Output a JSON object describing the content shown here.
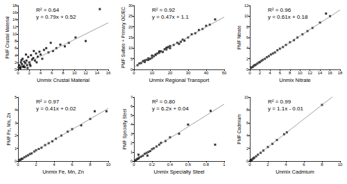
{
  "chart_data": [
    {
      "type": "scatter",
      "x_label": "Unmix Crustal Material",
      "y_label": "PMF Crustal Material",
      "annotations": [
        "R² = 0.64",
        "y = 0.79x + 0.52"
      ],
      "fit": {
        "slope": 0.79,
        "intercept": 0.52
      },
      "marker": "square",
      "color": "#000000",
      "grid": false,
      "x": [
        0.2,
        0.3,
        0.5,
        0.5,
        0.7,
        0.8,
        1.0,
        1.1,
        1.2,
        1.3,
        1.5,
        1.6,
        1.8,
        2.0,
        2.1,
        2.3,
        2.5,
        2.7,
        3.0,
        3.2,
        3.5,
        3.8,
        4.0,
        4.3,
        4.6,
        5.0,
        5.4,
        5.8,
        6.2,
        6.8,
        7.5,
        8.3,
        9.0,
        10.2,
        12.0,
        14.5,
        0.4,
        0.9,
        1.4,
        2.2,
        0.6,
        1.7,
        3.3,
        0.1,
        2.8
      ],
      "values": [
        1.2,
        0.5,
        2.0,
        0.8,
        1.5,
        3.0,
        1.0,
        2.2,
        0.6,
        1.8,
        2.5,
        1.2,
        3.5,
        2.0,
        1.4,
        4.0,
        2.8,
        3.2,
        2.5,
        4.5,
        3.6,
        5.0,
        4.2,
        3.0,
        5.5,
        6.0,
        4.8,
        7.5,
        5.2,
        6.0,
        7.0,
        6.5,
        7.5,
        9.0,
        8.0,
        17.0,
        0.3,
        0.7,
        4.2,
        1.0,
        2.6,
        0.4,
        2.0,
        0.6,
        5.2
      ],
      "xlim": [
        0,
        16
      ],
      "xticks": [
        0,
        2,
        4,
        6,
        8,
        10,
        12,
        14,
        16
      ],
      "ylim": [
        0,
        18
      ],
      "yticks": [
        0,
        2,
        4,
        6,
        8,
        10,
        12,
        14,
        16,
        18
      ]
    },
    {
      "type": "scatter",
      "x_label": "Unmix Regional Transport",
      "y_label": "PMF Sulfate + Primary OC/EC",
      "annotations": [
        "R² = 0.92",
        "y = 0.47x + 1.1"
      ],
      "fit": {
        "slope": 0.47,
        "intercept": 1.1
      },
      "marker": "square",
      "color": "#000000",
      "grid": false,
      "x": [
        2,
        3,
        4,
        5,
        6,
        7,
        8,
        9,
        10,
        11,
        12,
        13,
        14,
        15,
        16,
        17,
        18,
        19,
        20,
        22,
        24,
        25,
        27,
        28,
        30,
        32,
        34,
        36,
        38,
        40,
        42,
        45,
        6,
        10,
        14,
        18,
        8,
        12,
        20,
        26
      ],
      "values": [
        2.0,
        2.8,
        3.0,
        3.9,
        4.2,
        4.5,
        5.2,
        5.0,
        6.5,
        6.2,
        6.8,
        7.5,
        7.8,
        8.5,
        8.2,
        9.5,
        9.4,
        10.5,
        10.0,
        11.5,
        12.5,
        12.0,
        14.0,
        13.5,
        15.0,
        16.5,
        17.0,
        18.5,
        19.0,
        20.5,
        21.0,
        23.5,
        3.5,
        5.5,
        8.5,
        10.2,
        4.5,
        7.0,
        11.0,
        13.0
      ],
      "xlim": [
        0,
        50
      ],
      "xticks": [
        0,
        10,
        20,
        30,
        40,
        50
      ],
      "ylim": [
        0,
        30
      ],
      "yticks": [
        0,
        5,
        10,
        15,
        20,
        25,
        30
      ]
    },
    {
      "type": "scatter",
      "x_label": "Unmix Nitrate",
      "y_label": "PMF Nitrate",
      "annotations": [
        "R² = 0.96",
        "y = 0.61x + 0.18"
      ],
      "fit": {
        "slope": 0.61,
        "intercept": 0.18
      },
      "marker": "square",
      "color": "#000000",
      "grid": false,
      "x": [
        0.2,
        0.4,
        0.6,
        0.8,
        1.0,
        1.2,
        1.5,
        1.8,
        2.0,
        2.3,
        2.6,
        3.0,
        3.4,
        3.8,
        4.2,
        4.6,
        5.0,
        5.5,
        6.0,
        6.6,
        7.2,
        8.0,
        8.8,
        9.5,
        10.5,
        11.5,
        12.5,
        14.0,
        15.2,
        16.0
      ],
      "values": [
        0.3,
        0.4,
        0.5,
        0.7,
        0.8,
        0.9,
        1.1,
        1.3,
        1.4,
        1.6,
        1.8,
        2.0,
        2.3,
        2.5,
        2.8,
        3.0,
        3.2,
        3.6,
        3.9,
        4.2,
        4.6,
        5.1,
        5.5,
        6.0,
        6.6,
        7.2,
        7.8,
        8.8,
        10.5,
        10.0
      ],
      "xlim": [
        0,
        18
      ],
      "xticks": [
        0,
        2,
        4,
        6,
        8,
        10,
        12,
        14,
        16,
        18
      ],
      "ylim": [
        0,
        12
      ],
      "yticks": [
        0,
        2,
        4,
        6,
        8,
        10,
        12
      ]
    },
    {
      "type": "scatter",
      "x_label": "Unmix Fe, Mn, Zn",
      "y_label": "PMF Fe, Mn, Zn",
      "annotations": [
        "R² = 0.97",
        "y = 0.41x + 0.02"
      ],
      "fit": {
        "slope": 0.41,
        "intercept": 0.02
      },
      "marker": "square",
      "color": "#000000",
      "grid": false,
      "x": [
        0.1,
        0.2,
        0.3,
        0.4,
        0.5,
        0.7,
        0.9,
        1.1,
        1.3,
        1.5,
        1.8,
        2.0,
        2.3,
        2.6,
        3.0,
        3.4,
        3.8,
        4.2,
        4.8,
        5.5,
        6.0,
        7.0,
        8.0,
        8.5,
        9.8
      ],
      "values": [
        0.05,
        0.1,
        0.12,
        0.18,
        0.2,
        0.3,
        0.38,
        0.45,
        0.55,
        0.6,
        0.75,
        0.85,
        0.95,
        1.05,
        1.25,
        1.4,
        1.55,
        1.75,
        2.0,
        2.3,
        2.5,
        2.8,
        3.3,
        3.9,
        3.9
      ],
      "xlim": [
        0,
        10
      ],
      "xticks": [
        0,
        2,
        4,
        6,
        8,
        10
      ],
      "ylim": [
        0,
        5
      ],
      "yticks": [
        0,
        1,
        2,
        3,
        4,
        5
      ]
    },
    {
      "type": "scatter",
      "x_label": "Unmix Specialty Steel",
      "y_label": "PMF Specialty Steel",
      "annotations": [
        "R² = 0.80",
        "y = 6.2x + 0.04"
      ],
      "fit": {
        "slope": 6.2,
        "intercept": 0.04
      },
      "marker": "square",
      "color": "#000000",
      "grid": false,
      "x": [
        0.01,
        0.02,
        0.03,
        0.04,
        0.05,
        0.06,
        0.08,
        0.1,
        0.12,
        0.14,
        0.16,
        0.18,
        0.2,
        0.22,
        0.25,
        0.28,
        0.3,
        0.35,
        0.4,
        0.5,
        0.6,
        0.85,
        0.9,
        0.15,
        0.05
      ],
      "values": [
        0.05,
        0.1,
        0.2,
        0.25,
        0.3,
        0.4,
        0.5,
        0.6,
        0.8,
        0.9,
        1.0,
        1.1,
        1.3,
        1.4,
        1.6,
        1.8,
        2.0,
        2.2,
        2.6,
        3.0,
        4.0,
        5.5,
        1.8,
        0.6,
        0.7
      ],
      "xlim": [
        0,
        1
      ],
      "xticks": [
        0,
        0.2,
        0.4,
        0.6,
        0.8,
        1
      ],
      "ylim": [
        0,
        7
      ],
      "yticks": [
        0,
        1,
        2,
        3,
        4,
        5,
        6,
        7
      ]
    },
    {
      "type": "scatter",
      "x_label": "Unmix Cadmium",
      "y_label": "PMF Cadmium",
      "annotations": [
        "R² = 0.99",
        "y = 1.1x - 0.01"
      ],
      "fit": {
        "slope": 1.1,
        "intercept": -0.01
      },
      "marker": "square",
      "color": "#000000",
      "grid": false,
      "x": [
        0.05,
        0.1,
        0.15,
        0.2,
        0.3,
        0.4,
        0.5,
        0.7,
        0.9,
        1.2,
        1.5,
        2.0,
        2.5,
        3.0,
        3.8,
        4.1,
        8.0
      ],
      "values": [
        0.05,
        0.1,
        0.15,
        0.2,
        0.32,
        0.44,
        0.55,
        0.75,
        1.0,
        1.3,
        1.65,
        2.2,
        2.7,
        3.3,
        4.2,
        4.5,
        8.8
      ],
      "xlim": [
        0,
        10
      ],
      "xticks": [
        0,
        2,
        4,
        6,
        8,
        10
      ],
      "ylim": [
        0,
        10
      ],
      "yticks": [
        0,
        2,
        4,
        6,
        8,
        10
      ]
    }
  ]
}
